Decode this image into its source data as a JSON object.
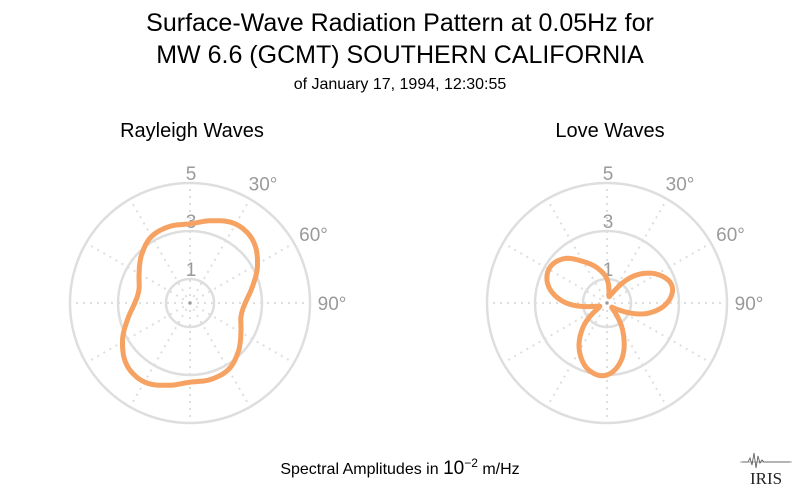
{
  "title": {
    "line1": "Surface-Wave Radiation Pattern at 0.05Hz for",
    "line2": "MW 6.6 (GCMT) SOUTHERN CALIFORNIA",
    "line3": "of January 17, 1994, 12:30:55"
  },
  "footer": {
    "prefix": "Spectral Amplitudes in ",
    "base": "10",
    "exponent": "−2",
    "unit": " m/Hz"
  },
  "logo_text": "IRIS",
  "colors": {
    "pattern": "#f5a262",
    "grid": "#dedede",
    "tick_label": "#9a9a9a"
  },
  "chart_data": [
    {
      "type": "polar-line",
      "title": "Rayleigh Waves",
      "radial_ticks": [
        "1",
        "3",
        "5"
      ],
      "radial_max": 5,
      "angle_ticks": [
        "30°",
        "60°",
        "90°"
      ],
      "grid": true,
      "series": [
        {
          "azimuth_deg": [
            0,
            15,
            30,
            45,
            60,
            75,
            90,
            105,
            120,
            135,
            150,
            165,
            180,
            195,
            210,
            225,
            240,
            255,
            270,
            285,
            300,
            315,
            330,
            345
          ],
          "amplitude": [
            3.3,
            3.55,
            3.8,
            3.7,
            3.25,
            2.7,
            2.3,
            2.2,
            2.45,
            2.85,
            3.2,
            3.3,
            3.3,
            3.55,
            3.8,
            3.7,
            3.25,
            2.7,
            2.3,
            2.2,
            2.45,
            2.85,
            3.2,
            3.3
          ]
        }
      ]
    },
    {
      "type": "polar-line",
      "title": "Love Waves",
      "radial_ticks": [
        "1",
        "3",
        "5"
      ],
      "radial_max": 5,
      "angle_ticks": [
        "30°",
        "60°",
        "90°"
      ],
      "grid": true,
      "series": [
        {
          "azimuth_deg": [
            0,
            15,
            30,
            45,
            60,
            75,
            90,
            105,
            120,
            135,
            150,
            165,
            180,
            195,
            210,
            225,
            240,
            255,
            270,
            285,
            300,
            315,
            330,
            345
          ],
          "amplitude": [
            1.0,
            0.3,
            0.55,
            1.6,
            2.4,
            2.8,
            2.5,
            1.7,
            0.6,
            0.3,
            1.3,
            2.4,
            3.0,
            2.9,
            2.3,
            1.4,
            0.4,
            0.55,
            1.7,
            2.5,
            2.8,
            2.6,
            2.0,
            1.5
          ]
        }
      ]
    }
  ]
}
